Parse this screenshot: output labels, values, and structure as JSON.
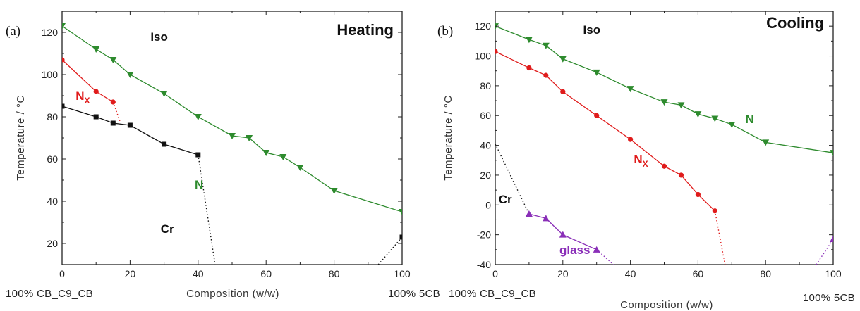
{
  "chart_data": [
    {
      "type": "line",
      "panel_label": "(a)",
      "title": "Heating",
      "xlabel": "Composition (w/w)",
      "ylabel": "Temperature / °C",
      "xlim": [
        0,
        100
      ],
      "ylim": [
        10,
        130
      ],
      "xticks": [
        0,
        20,
        40,
        60,
        80,
        100
      ],
      "yticks": [
        20,
        40,
        60,
        80,
        100,
        120
      ],
      "left_end_label": "100% CB_C9_CB",
      "right_end_label": "100% 5CB",
      "region_labels": [
        {
          "text": "Iso",
          "x": 26,
          "y": 116,
          "color": "#111111"
        },
        {
          "text": "N",
          "x": 40,
          "y": 46,
          "color": "#2e8b2e",
          "sub": "X",
          "x_main": 4,
          "y_main": 88,
          "main": "N",
          "sub_color": "#e01b1b"
        },
        {
          "text": "N",
          "x": 76,
          "y": 55,
          "color": "#2e8b2e"
        },
        {
          "text": "Cr",
          "x": 29,
          "y": 25,
          "color": "#111111"
        }
      ],
      "labels": [
        {
          "main": "Iso",
          "x": 26,
          "y": 116,
          "color": "#111111"
        },
        {
          "main": "N",
          "sub": "X",
          "x": 4,
          "y": 88,
          "color": "#e01b1b"
        },
        {
          "main": "N",
          "x": 39,
          "y": 46,
          "color": "#2e8b2e"
        },
        {
          "main": "Cr",
          "x": 29,
          "y": 25,
          "color": "#111111"
        }
      ],
      "series": [
        {
          "marker": "triangle-down",
          "color": "#2e8b2e",
          "x": [
            0,
            10,
            15,
            20,
            30,
            40,
            50,
            55,
            60,
            65,
            70,
            80,
            100
          ],
          "y": [
            123,
            112,
            107,
            100,
            91,
            80,
            71,
            70,
            63,
            61,
            56,
            45,
            35
          ]
        },
        {
          "marker": "circle",
          "color": "#e01b1b",
          "x": [
            0,
            10,
            15
          ],
          "y": [
            107,
            92,
            87
          ]
        },
        {
          "marker": "square",
          "color": "#111111",
          "x": [
            0,
            10,
            15,
            20,
            30,
            40
          ],
          "y": [
            85,
            80,
            77,
            76,
            67,
            62
          ]
        }
      ],
      "dotted_lines": [
        {
          "x": [
            15,
            17
          ],
          "y": [
            87,
            78
          ],
          "color": "#e01b1b"
        },
        {
          "x": [
            40,
            45
          ],
          "y": [
            62,
            10
          ],
          "color": "#111111"
        },
        {
          "x": [
            93,
            100
          ],
          "y": [
            10,
            23
          ],
          "color": "#111111"
        }
      ],
      "extra_points": [
        {
          "marker": "square",
          "color": "#111111",
          "x": 100,
          "y": 23
        }
      ]
    },
    {
      "type": "line",
      "panel_label": "(b)",
      "title": "Cooling",
      "xlabel": "Composition (w/w)",
      "ylabel": "Temperature / °C",
      "xlim": [
        0,
        100
      ],
      "ylim": [
        -40,
        130
      ],
      "xticks": [
        0,
        20,
        40,
        60,
        80,
        100
      ],
      "yticks": [
        -40,
        -20,
        0,
        20,
        40,
        60,
        80,
        100,
        120
      ],
      "left_end_label": "100% CB_C9_CB",
      "right_end_label": "100% 5CB",
      "labels": [
        {
          "main": "Iso",
          "x": 26,
          "y": 115,
          "color": "#111111"
        },
        {
          "main": "N",
          "x": 74,
          "y": 55,
          "color": "#2e8b2e"
        },
        {
          "main": "N",
          "sub": "X",
          "x": 41,
          "y": 28,
          "color": "#e01b1b"
        },
        {
          "main": "Cr",
          "x": 1,
          "y": 1,
          "color": "#111111"
        },
        {
          "main": "glass",
          "x": 19,
          "y": -33,
          "color": "#8a2fb8",
          "bold": false
        }
      ],
      "series": [
        {
          "marker": "triangle-down",
          "color": "#2e8b2e",
          "x": [
            0,
            10,
            15,
            20,
            30,
            40,
            50,
            55,
            60,
            65,
            70,
            80,
            100
          ],
          "y": [
            120,
            111,
            107,
            98,
            89,
            78,
            69,
            67,
            61,
            58,
            54,
            42,
            35
          ]
        },
        {
          "marker": "circle",
          "color": "#e01b1b",
          "x": [
            0,
            10,
            15,
            20,
            30,
            40,
            50,
            55,
            60,
            65
          ],
          "y": [
            103,
            92,
            87,
            76,
            60,
            44,
            26,
            20,
            7,
            -4
          ]
        },
        {
          "marker": "triangle-up",
          "color": "#8a2fb8",
          "x": [
            10,
            15,
            20,
            30
          ],
          "y": [
            -6,
            -9,
            -20,
            -30
          ]
        }
      ],
      "dotted_lines": [
        {
          "x": [
            0,
            10
          ],
          "y": [
            41,
            -6
          ],
          "color": "#111111"
        },
        {
          "x": [
            30,
            35
          ],
          "y": [
            -30,
            -40
          ],
          "color": "#8a2fb8"
        },
        {
          "x": [
            65,
            68
          ],
          "y": [
            -4,
            -40
          ],
          "color": "#e01b1b"
        },
        {
          "x": [
            95,
            100
          ],
          "y": [
            -40,
            -23
          ],
          "color": "#8a2fb8"
        }
      ],
      "extra_points": [
        {
          "marker": "triangle-up",
          "color": "#8a2fb8",
          "x": 100,
          "y": -23
        }
      ]
    }
  ]
}
